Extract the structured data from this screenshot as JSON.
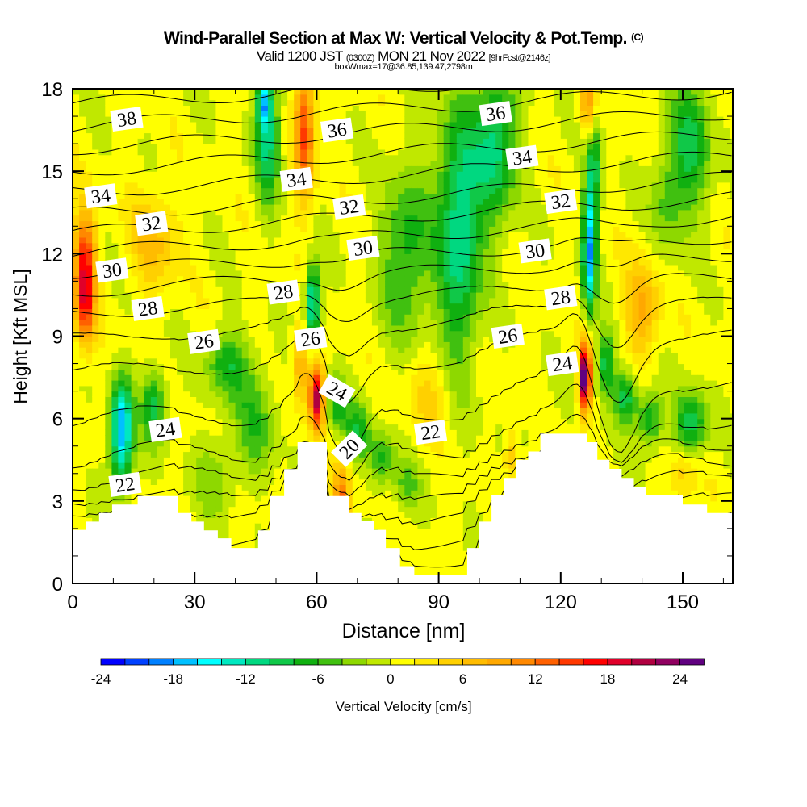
{
  "title": {
    "main": "Wind-Parallel Section at Max W: Vertical Velocity & Pot.Temp.",
    "copyright": "(C)",
    "valid_a": "Valid 1200 JST ",
    "valid_utc": "(0300Z)",
    "valid_b": " MON 21 Nov 2022 ",
    "forecast": "[9hrFcst@2146z]",
    "box": "boxWmax=17@36.85,139.47,2798m"
  },
  "chart_data": {
    "type": "heatmap",
    "title": "Wind-Parallel Section at Max W: Vertical Velocity & Pot.Temp.",
    "xlabel": "Distance [nm]",
    "ylabel": "Height [Kft MSL]",
    "xlim": [
      0,
      162.3
    ],
    "ylim": [
      0,
      18
    ],
    "x_ticks": [
      "0",
      "30",
      "60",
      "90",
      "120",
      "150"
    ],
    "y_ticks": [
      "0",
      "3",
      "6",
      "9",
      "12",
      "15",
      "18"
    ],
    "colorbar": {
      "label": "Vertical Velocity [cm/s]",
      "range": [
        -24,
        26
      ],
      "step": 2,
      "tick_labels": [
        "-24",
        "-18",
        "-12",
        "-6",
        "0",
        "6",
        "12",
        "18",
        "24"
      ],
      "colors": [
        "#0000ff",
        "#0040ff",
        "#0080ff",
        "#00c0ff",
        "#00ffff",
        "#00e8c0",
        "#00d880",
        "#10c848",
        "#10b010",
        "#40c010",
        "#8ed800",
        "#c0e800",
        "#ffff00",
        "#ffe800",
        "#ffd000",
        "#ffbc00",
        "#ffa800",
        "#ff8800",
        "#ff6000",
        "#ff3800",
        "#ff0000",
        "#e0002a",
        "#b00040",
        "#900060",
        "#600080"
      ]
    },
    "vertical_velocity_features": [
      [
        3,
        10.5,
        17,
        2.5,
        1.8
      ],
      [
        3,
        12.5,
        8,
        3,
        1.5
      ],
      [
        12,
        6,
        -15,
        2.5,
        1.6
      ],
      [
        12,
        4.5,
        -8,
        3,
        1.5
      ],
      [
        20,
        6.5,
        -10,
        3,
        1.3
      ],
      [
        38,
        8,
        -8,
        5,
        1.2
      ],
      [
        45,
        6,
        -6,
        5,
        2
      ],
      [
        48,
        16.5,
        -12,
        3,
        2.5
      ],
      [
        47,
        17.5,
        -10,
        1.5,
        0.8
      ],
      [
        20,
        12.5,
        6,
        6,
        1.8
      ],
      [
        57,
        16.5,
        14,
        2.5,
        2.5
      ],
      [
        59,
        10.2,
        -16,
        1.8,
        1.4
      ],
      [
        60,
        6.8,
        20,
        1.8,
        1.2
      ],
      [
        56,
        8,
        8,
        2,
        1.5
      ],
      [
        65,
        6.5,
        -8,
        2.5,
        1
      ],
      [
        70,
        5.5,
        -8,
        3,
        1
      ],
      [
        76,
        4.5,
        -7,
        3,
        1
      ],
      [
        82,
        3.5,
        -5,
        3,
        1
      ],
      [
        82,
        12,
        -8,
        6,
        3
      ],
      [
        95,
        11.5,
        -10,
        5,
        4
      ],
      [
        104,
        16,
        -11,
        5,
        3
      ],
      [
        95,
        15,
        -6,
        6,
        3
      ],
      [
        127,
        12,
        -17,
        1.6,
        2.2
      ],
      [
        128,
        15.5,
        -10,
        2,
        2.5
      ],
      [
        126,
        7.5,
        26,
        1.4,
        1.2
      ],
      [
        127,
        17.5,
        12,
        2,
        1.5
      ],
      [
        131,
        8,
        -10,
        2,
        1.2
      ],
      [
        136,
        6.8,
        -10,
        3,
        1
      ],
      [
        142,
        6,
        -9,
        3,
        1
      ],
      [
        152,
        5.8,
        -10,
        4,
        1.2
      ],
      [
        140,
        10,
        8,
        4,
        1.8
      ],
      [
        152,
        16,
        -9,
        5,
        2.5
      ],
      [
        110,
        4,
        -4,
        5,
        1.5
      ],
      [
        66,
        3,
        12,
        2,
        1.2
      ],
      [
        112,
        3.8,
        10,
        2,
        1
      ],
      [
        108,
        4.5,
        8,
        2,
        1.2
      ],
      [
        150,
        4,
        5,
        3,
        1
      ],
      [
        35,
        4,
        -4,
        5,
        1.5
      ],
      [
        88,
        7,
        4,
        6,
        1.5
      ],
      [
        146,
        14,
        -5,
        4,
        2
      ]
    ],
    "terrain_steps": [
      [
        0,
        1.95
      ],
      [
        3.2,
        2.25
      ],
      [
        6.5,
        2.56
      ],
      [
        9.7,
        2.87
      ],
      [
        16,
        3.18
      ],
      [
        25.8,
        2.56
      ],
      [
        29.2,
        2.25
      ],
      [
        32.3,
        1.93
      ],
      [
        35.7,
        1.64
      ],
      [
        39,
        1.29
      ],
      [
        45.6,
        1.93
      ],
      [
        48.5,
        3.18
      ],
      [
        52,
        4.16
      ],
      [
        55.3,
        5.14
      ],
      [
        62.5,
        3.18
      ],
      [
        68,
        2.56
      ],
      [
        71,
        2.26
      ],
      [
        74,
        1.95
      ],
      [
        77,
        1.29
      ],
      [
        80.5,
        0.63
      ],
      [
        84,
        0.32
      ],
      [
        97,
        1.29
      ],
      [
        100,
        2.25
      ],
      [
        103,
        3.2
      ],
      [
        106,
        3.84
      ],
      [
        109,
        4.5
      ],
      [
        112,
        4.8
      ],
      [
        115,
        5.45
      ],
      [
        126.5,
        5.14
      ],
      [
        129,
        4.5
      ],
      [
        132,
        4.17
      ],
      [
        135,
        3.84
      ],
      [
        138,
        3.52
      ],
      [
        141,
        3.2
      ],
      [
        150,
        2.87
      ],
      [
        156,
        2.56
      ]
    ],
    "theta_levels": [
      19,
      20,
      21,
      22,
      23,
      24,
      25,
      26,
      27,
      28,
      29,
      30,
      31,
      32,
      33,
      34,
      35,
      36,
      37,
      38,
      39
    ],
    "theta_base_height": [
      1.9,
      2.5,
      3.2,
      3.8,
      4.5,
      5.3,
      6.6,
      8.3,
      9.5,
      10.4,
      11.2,
      11.9,
      12.6,
      13.3,
      14.0,
      14.8,
      15.6,
      16.4,
      17.2,
      18.0,
      18.8
    ],
    "contour_labels": [
      {
        "text": "38",
        "x": 13.3,
        "z": 16.9
      },
      {
        "text": "36",
        "x": 65,
        "z": 16.5
      },
      {
        "text": "36",
        "x": 104,
        "z": 17.1
      },
      {
        "text": "34",
        "x": 6.9,
        "z": 14.1
      },
      {
        "text": "34",
        "x": 55,
        "z": 14.7
      },
      {
        "text": "34",
        "x": 110.5,
        "z": 15.5
      },
      {
        "text": "32",
        "x": 19.4,
        "z": 13.1
      },
      {
        "text": "32",
        "x": 68,
        "z": 13.7
      },
      {
        "text": "32",
        "x": 120,
        "z": 13.9
      },
      {
        "text": "30",
        "x": 9.7,
        "z": 11.4
      },
      {
        "text": "30",
        "x": 71.4,
        "z": 12.2
      },
      {
        "text": "30",
        "x": 113.7,
        "z": 12.1
      },
      {
        "text": "28",
        "x": 18.5,
        "z": 10.0
      },
      {
        "text": "28",
        "x": 51.8,
        "z": 10.6
      },
      {
        "text": "28",
        "x": 120,
        "z": 10.4
      },
      {
        "text": "26",
        "x": 32.3,
        "z": 8.8
      },
      {
        "text": "26",
        "x": 58.5,
        "z": 8.9
      },
      {
        "text": "26",
        "x": 107,
        "z": 9.0
      },
      {
        "text": "24",
        "x": 22.8,
        "z": 5.6
      },
      {
        "text": "24",
        "x": 65,
        "z": 7.0
      },
      {
        "text": "24",
        "x": 120.4,
        "z": 8.0
      },
      {
        "text": "22",
        "x": 12.9,
        "z": 3.6
      },
      {
        "text": "22",
        "x": 88,
        "z": 5.5
      },
      {
        "text": "20",
        "x": 68,
        "z": 4.9
      }
    ]
  }
}
